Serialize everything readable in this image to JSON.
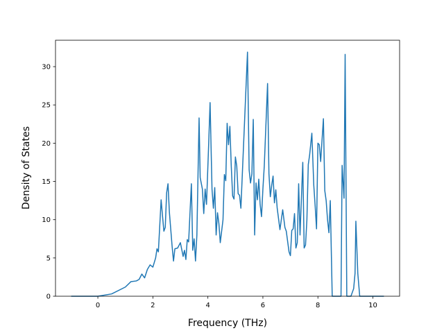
{
  "chart_data": {
    "type": "line",
    "xlabel": "Frequency (THz)",
    "ylabel": "Density of States",
    "xlim": [
      -1.54,
      10.97
    ],
    "ylim": [
      0,
      33.45
    ],
    "xticks": [
      0,
      2,
      4,
      6,
      8,
      10
    ],
    "yticks": [
      0,
      5,
      10,
      15,
      20,
      25,
      30
    ],
    "series": [
      {
        "color": "#1f77b4",
        "x": [
          -0.97,
          0,
          0.5,
          1.0,
          1.2,
          1.4,
          1.5,
          1.6,
          1.7,
          1.8,
          1.9,
          2.0,
          2.1,
          2.15,
          2.2,
          2.3,
          2.35,
          2.4,
          2.45,
          2.5,
          2.55,
          2.6,
          2.7,
          2.75,
          2.8,
          2.9,
          3.0,
          3.1,
          3.15,
          3.2,
          3.25,
          3.3,
          3.4,
          3.45,
          3.5,
          3.55,
          3.6,
          3.68,
          3.72,
          3.8,
          3.85,
          3.9,
          3.95,
          4.03,
          4.08,
          4.15,
          4.2,
          4.25,
          4.3,
          4.35,
          4.4,
          4.45,
          4.5,
          4.55,
          4.6,
          4.65,
          4.7,
          4.75,
          4.8,
          4.85,
          4.9,
          4.95,
          5.0,
          5.05,
          5.1,
          5.15,
          5.2,
          5.3,
          5.44,
          5.5,
          5.55,
          5.6,
          5.65,
          5.7,
          5.75,
          5.8,
          5.85,
          5.9,
          5.95,
          6.0,
          6.05,
          6.17,
          6.22,
          6.27,
          6.32,
          6.37,
          6.42,
          6.47,
          6.52,
          6.62,
          6.72,
          6.8,
          6.85,
          6.95,
          7.0,
          7.05,
          7.1,
          7.15,
          7.2,
          7.25,
          7.3,
          7.35,
          7.45,
          7.5,
          7.55,
          7.6,
          7.65,
          7.7,
          7.78,
          7.85,
          7.9,
          7.95,
          8.0,
          8.05,
          8.1,
          8.2,
          8.25,
          8.3,
          8.35,
          8.4,
          8.45,
          8.52,
          8.84,
          8.88,
          8.95,
          8.99,
          9.05,
          9.2,
          9.3,
          9.35,
          9.38,
          9.45,
          9.52,
          10.4
        ],
        "values": [
          0,
          0,
          0.3,
          1.2,
          1.9,
          2.0,
          2.2,
          2.9,
          2.4,
          3.5,
          4.1,
          3.8,
          5.0,
          6.2,
          5.8,
          12.6,
          10.5,
          8.5,
          9.0,
          13.5,
          14.7,
          11.0,
          6.5,
          4.6,
          6.2,
          6.3,
          7.0,
          5.2,
          6.0,
          4.8,
          7.4,
          7.1,
          14.7,
          6.0,
          7.5,
          4.6,
          8.0,
          23.3,
          15.5,
          14.0,
          10.8,
          14.0,
          12.0,
          20.0,
          25.3,
          14.0,
          11.5,
          14.2,
          8.0,
          10.9,
          9.5,
          7.0,
          8.5,
          10.0,
          15.9,
          15.1,
          22.6,
          19.8,
          22.2,
          17.0,
          13.1,
          12.7,
          18.2,
          17.0,
          13.4,
          13.2,
          11.5,
          20.0,
          31.9,
          16.5,
          14.8,
          16.0,
          23.1,
          8.0,
          14.8,
          12.6,
          15.3,
          12.0,
          10.4,
          14.0,
          17.0,
          27.8,
          16.0,
          13.0,
          14.5,
          15.7,
          12.2,
          13.9,
          11.5,
          8.7,
          11.3,
          9.0,
          8.5,
          5.8,
          5.3,
          8.6,
          8.8,
          10.8,
          6.3,
          7.0,
          14.7,
          8.0,
          17.5,
          6.3,
          6.7,
          10.0,
          17.2,
          18.5,
          21.3,
          14.5,
          11.8,
          8.8,
          20.0,
          19.8,
          17.6,
          23.2,
          13.8,
          12.5,
          10.0,
          8.3,
          12.5,
          0,
          0,
          17.1,
          12.8,
          31.6,
          0,
          0,
          1.0,
          3.0,
          9.8,
          3.0,
          0,
          0
        ]
      }
    ]
  }
}
